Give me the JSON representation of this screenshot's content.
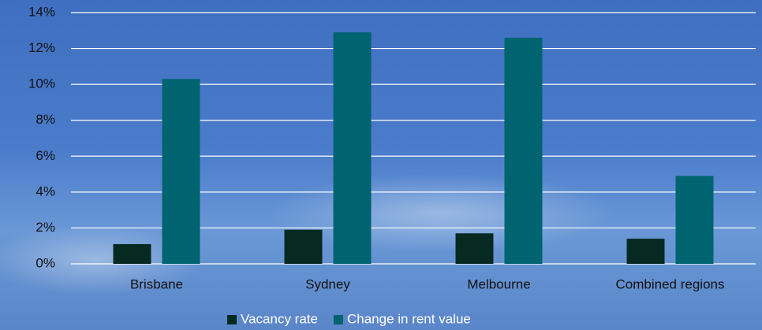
{
  "chart_data": {
    "type": "bar",
    "categories": [
      "Brisbane",
      "Sydney",
      "Melbourne",
      "Combined regions"
    ],
    "series": [
      {
        "name": "Vacancy rate",
        "color": "#062a22",
        "values": [
          1.1,
          1.9,
          1.7,
          1.4
        ]
      },
      {
        "name": "Change in rent value",
        "color": "#006370",
        "values": [
          10.3,
          12.9,
          12.6,
          4.9
        ]
      }
    ],
    "ylim": [
      0,
      14
    ],
    "yticks": [
      {
        "value": 0,
        "label": "0%"
      },
      {
        "value": 2,
        "label": "2%"
      },
      {
        "value": 4,
        "label": "4%"
      },
      {
        "value": 6,
        "label": "6%"
      },
      {
        "value": 8,
        "label": "8%"
      },
      {
        "value": 10,
        "label": "10%"
      },
      {
        "value": 12,
        "label": "12%"
      },
      {
        "value": 14,
        "label": "14%"
      }
    ],
    "grid": true,
    "legend": "bottom"
  }
}
